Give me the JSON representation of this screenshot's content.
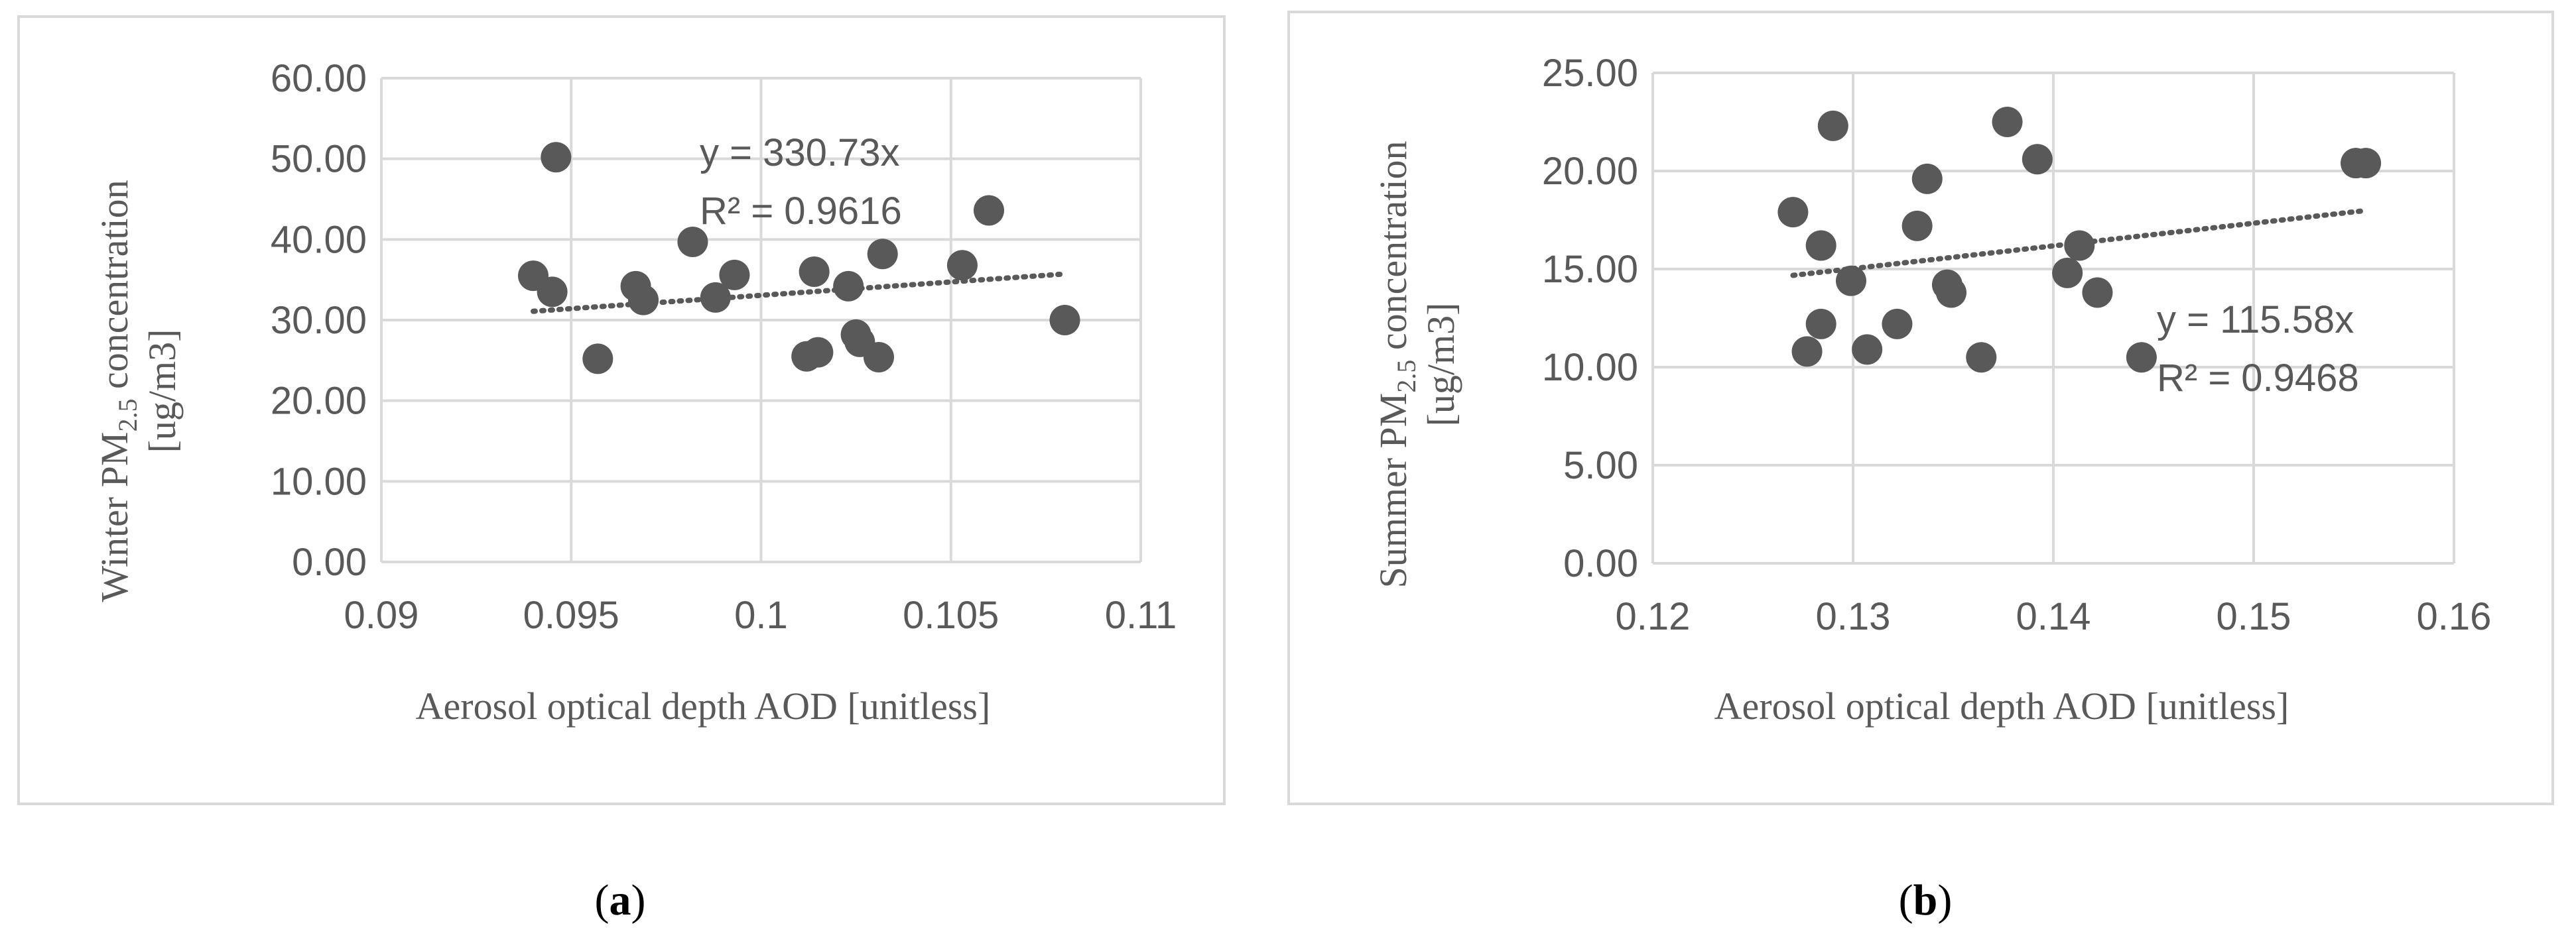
{
  "chart_data": [
    {
      "type": "scatter",
      "panel_label": "a",
      "xlabel": "Aerosol optical depth AOD [unitless]",
      "ylabel_prefix": "Winter PM",
      "ylabel_sub": "2.5",
      "ylabel_suffix": " concentration",
      "ylabel_line2": "[ug/m3]",
      "xlim": [
        0.09,
        0.11
      ],
      "ylim": [
        0,
        60
      ],
      "x_ticks": [
        "0.09",
        "0.095",
        "0.1",
        "0.105",
        "0.11"
      ],
      "y_ticks": [
        "0.00",
        "10.00",
        "20.00",
        "30.00",
        "40.00",
        "50.00",
        "60.00"
      ],
      "grid": true,
      "trendline": {
        "slope": 330.73,
        "x_range": [
          0.094,
          0.108
        ],
        "label": "y = 330.73x",
        "r2_label": "R² = 0.9616"
      },
      "points": [
        [
          0.094,
          35.5
        ],
        [
          0.0945,
          33.5
        ],
        [
          0.0946,
          50.2
        ],
        [
          0.0957,
          25.2
        ],
        [
          0.0967,
          34.2
        ],
        [
          0.0969,
          32.5
        ],
        [
          0.0982,
          39.7
        ],
        [
          0.0988,
          32.8
        ],
        [
          0.0993,
          35.6
        ],
        [
          0.1012,
          25.5
        ],
        [
          0.1015,
          26.0
        ],
        [
          0.1014,
          36.0
        ],
        [
          0.1023,
          34.2
        ],
        [
          0.1025,
          28.2
        ],
        [
          0.1026,
          27.3
        ],
        [
          0.1031,
          25.4
        ],
        [
          0.1032,
          38.2
        ],
        [
          0.1053,
          36.8
        ],
        [
          0.106,
          43.6
        ],
        [
          0.108,
          30.0
        ]
      ]
    },
    {
      "type": "scatter",
      "panel_label": "b",
      "xlabel": "Aerosol optical depth AOD [unitless]",
      "ylabel_prefix": "Summer PM",
      "ylabel_sub": "2.5",
      "ylabel_suffix": " concentration",
      "ylabel_line2": "[ug/m3]",
      "xlim": [
        0.12,
        0.16
      ],
      "ylim": [
        0,
        25
      ],
      "x_ticks": [
        "0.12",
        "0.13",
        "0.14",
        "0.15",
        "0.16"
      ],
      "y_ticks": [
        "0.00",
        "5.00",
        "10.00",
        "15.00",
        "20.00",
        "25.00"
      ],
      "grid": true,
      "trendline": {
        "slope": 115.58,
        "x_range": [
          0.127,
          0.1555
        ],
        "label": "y = 115.58x",
        "r2_label": "R² = 0.9468"
      },
      "points": [
        [
          0.127,
          17.9
        ],
        [
          0.1277,
          10.8
        ],
        [
          0.1284,
          16.2
        ],
        [
          0.1284,
          12.2
        ],
        [
          0.129,
          22.3
        ],
        [
          0.1299,
          14.4
        ],
        [
          0.1307,
          10.9
        ],
        [
          0.1322,
          12.2
        ],
        [
          0.1332,
          17.2
        ],
        [
          0.1337,
          19.6
        ],
        [
          0.1347,
          14.2
        ],
        [
          0.1349,
          13.8
        ],
        [
          0.1364,
          10.5
        ],
        [
          0.1377,
          22.5
        ],
        [
          0.1392,
          20.6
        ],
        [
          0.1407,
          14.8
        ],
        [
          0.1413,
          16.2
        ],
        [
          0.1422,
          13.8
        ],
        [
          0.1444,
          10.5
        ],
        [
          0.1551,
          20.4
        ],
        [
          0.1556,
          20.4
        ]
      ]
    }
  ]
}
